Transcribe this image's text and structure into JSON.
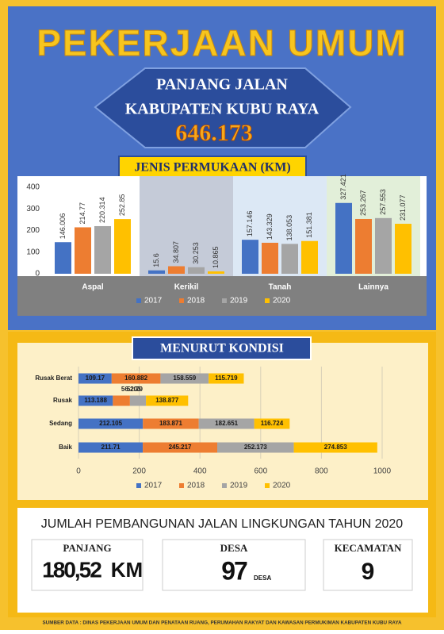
{
  "header": {
    "title": "PEKERJAAN UMUM",
    "line1": "PANJANG JALAN",
    "line2": "KABUPATEN KUBU RAYA",
    "total": "646.173"
  },
  "chart_data": [
    {
      "type": "bar",
      "title": "JENIS PERMUKAAN (KM)",
      "categories": [
        "Aspal",
        "Kerikil",
        "Tanah",
        "Lainnya"
      ],
      "series": [
        {
          "name": "2017",
          "color": "#4472c4",
          "values": [
            146.006,
            15.6,
            157.146,
            327.421
          ]
        },
        {
          "name": "2018",
          "color": "#ed7d31",
          "values": [
            214.77,
            34.807,
            143.329,
            253.267
          ]
        },
        {
          "name": "2019",
          "color": "#a5a5a5",
          "values": [
            220.314,
            30.253,
            138.053,
            257.553
          ]
        },
        {
          "name": "2020",
          "color": "#ffc000",
          "values": [
            252.85,
            10.865,
            151.381,
            231.077
          ]
        }
      ],
      "ylim": [
        0,
        400
      ],
      "yticks": [
        0,
        100,
        200,
        300,
        400
      ],
      "grid": false,
      "legend": "bottom"
    },
    {
      "type": "bar",
      "orientation": "horizontal",
      "stacked": true,
      "title": "MENURUT KONDISI",
      "categories": [
        "Rusak Berat",
        "Rusak",
        "Sedang",
        "Baik"
      ],
      "series": [
        {
          "name": "2017",
          "color": "#4472c4",
          "values": [
            109.17,
            113.188,
            212.105,
            211.71
          ]
        },
        {
          "name": "2018",
          "color": "#ed7d31",
          "values": [
            160.882,
            56.203,
            183.871,
            245.217
          ]
        },
        {
          "name": "2019",
          "color": "#a5a5a5",
          "values": [
            158.559,
            52.79,
            182.651,
            252.173
          ]
        },
        {
          "name": "2020",
          "color": "#ffc000",
          "values": [
            115.719,
            138.877,
            116.724,
            274.853
          ]
        }
      ],
      "xlim": [
        0,
        1000
      ],
      "xticks": [
        0,
        200,
        400,
        600,
        800,
        1000
      ],
      "grid": true,
      "legend": "bottom"
    }
  ],
  "summary": {
    "title": "JUMLAH PEMBANGUNAN JALAN LINGKUNGAN TAHUN 2020",
    "boxes": [
      {
        "label": "PANJANG",
        "value": "180,52",
        "unit": "KM"
      },
      {
        "label": "DESA",
        "value": 97,
        "unit": "DESA"
      },
      {
        "label": "KECAMATAN",
        "value": 9
      }
    ]
  },
  "source": "SUMBER DATA : DINAS PEKERJAAN UMUM DAN PENATAAN RUANG, PERUMAHAN RAKYAT DAN KAWASAN PERMUKIMAN KABUPATEN KUBU RAYA"
}
